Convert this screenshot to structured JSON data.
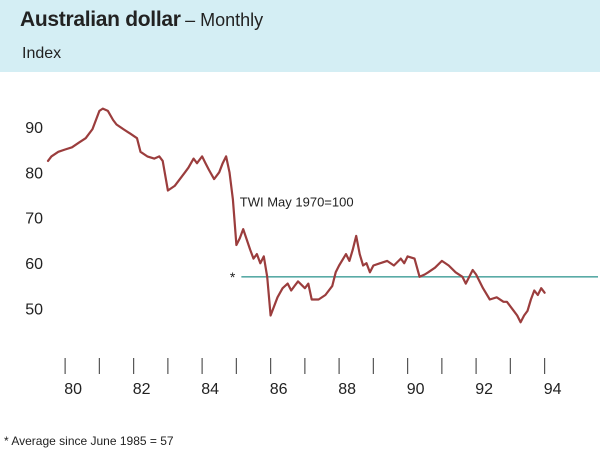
{
  "header": {
    "title": "Australian dollar",
    "subtitle": "– Monthly",
    "units": "Index",
    "band_color": "#d4eef4"
  },
  "footnote": "* Average since June 1985 = 57",
  "chart_data": {
    "type": "line",
    "title": "Australian dollar",
    "subtitle": "Monthly",
    "ylabel": "Index",
    "xlabel": "",
    "xlim": [
      1979.5,
      1994.8
    ],
    "ylim": [
      42,
      97
    ],
    "yticks": [
      50,
      60,
      70,
      80,
      90
    ],
    "xticks": [
      1980,
      1982,
      1984,
      1986,
      1988,
      1990,
      1992,
      1994
    ],
    "xtick_labels": [
      "80",
      "82",
      "84",
      "86",
      "88",
      "90",
      "92",
      "94"
    ],
    "grid": false,
    "series": [
      {
        "name": "",
        "color": "#9b3d3d",
        "x": [
          1979.5,
          1979.6,
          1979.8,
          1980.0,
          1980.2,
          1980.4,
          1980.6,
          1980.8,
          1981.0,
          1981.1,
          1981.25,
          1981.4,
          1981.5,
          1981.7,
          1981.9,
          1982.1,
          1982.2,
          1982.4,
          1982.6,
          1982.75,
          1982.85,
          1983.0,
          1983.2,
          1983.4,
          1983.5,
          1983.6,
          1983.75,
          1983.85,
          1984.0,
          1984.1,
          1984.2,
          1984.35,
          1984.5,
          1984.6,
          1984.7,
          1984.8,
          1984.9,
          1985.0,
          1985.1,
          1985.2,
          1985.4,
          1985.5,
          1985.6,
          1985.7,
          1985.8,
          1985.9,
          1986.0,
          1986.2,
          1986.35,
          1986.5,
          1986.6,
          1986.7,
          1986.8,
          1987.0,
          1987.1,
          1987.2,
          1987.4,
          1987.6,
          1987.8,
          1987.9,
          1988.0,
          1988.2,
          1988.3,
          1988.4,
          1988.45,
          1988.5,
          1988.6,
          1988.7,
          1988.8,
          1988.9,
          1989.0,
          1989.2,
          1989.4,
          1989.6,
          1989.8,
          1989.9,
          1990.0,
          1990.2,
          1990.35,
          1990.5,
          1990.6,
          1990.8,
          1991.0,
          1991.2,
          1991.4,
          1991.6,
          1991.7,
          1991.9,
          1992.0,
          1992.2,
          1992.4,
          1992.6,
          1992.8,
          1992.9,
          1993.0,
          1993.1,
          1993.2,
          1993.3,
          1993.4,
          1993.5,
          1993.6,
          1993.7,
          1993.8,
          1993.9,
          1994.0
        ],
        "values": [
          82.5,
          83.5,
          84.5,
          85,
          85.5,
          86.5,
          87.5,
          89.5,
          93.5,
          94,
          93.5,
          91.5,
          90.5,
          89.5,
          88.5,
          87.5,
          84.5,
          83.5,
          83,
          83.5,
          82.5,
          76,
          77,
          79,
          80,
          81,
          83,
          82,
          83.5,
          82,
          80.5,
          78.5,
          80,
          82,
          83.5,
          80,
          74,
          64,
          65.5,
          67.5,
          63,
          61,
          62,
          60,
          61.5,
          57,
          48.5,
          52.5,
          54.5,
          55.5,
          54,
          55,
          56,
          54.5,
          55.5,
          52,
          52,
          53,
          55,
          58,
          59.5,
          62,
          60.5,
          63,
          64.5,
          66,
          62,
          59.5,
          60,
          58,
          59.5,
          60,
          60.5,
          59.5,
          61,
          60,
          61.5,
          61,
          57,
          57.5,
          58,
          59,
          60.5,
          59.5,
          58,
          57,
          55.5,
          58.5,
          57.5,
          54.5,
          52,
          52.5,
          51.5,
          51.5,
          50.5,
          49.5,
          48.5,
          47,
          48.5,
          49.5,
          52,
          54,
          53,
          54.5,
          53.5
        ]
      }
    ],
    "average_line": {
      "value": 57,
      "from_x": 1985.0,
      "color": "#5aaba6",
      "marker": "*"
    },
    "annotations": [
      {
        "text": "TWI May 1970=100",
        "x": 1985.1,
        "y": 72.5
      }
    ]
  }
}
